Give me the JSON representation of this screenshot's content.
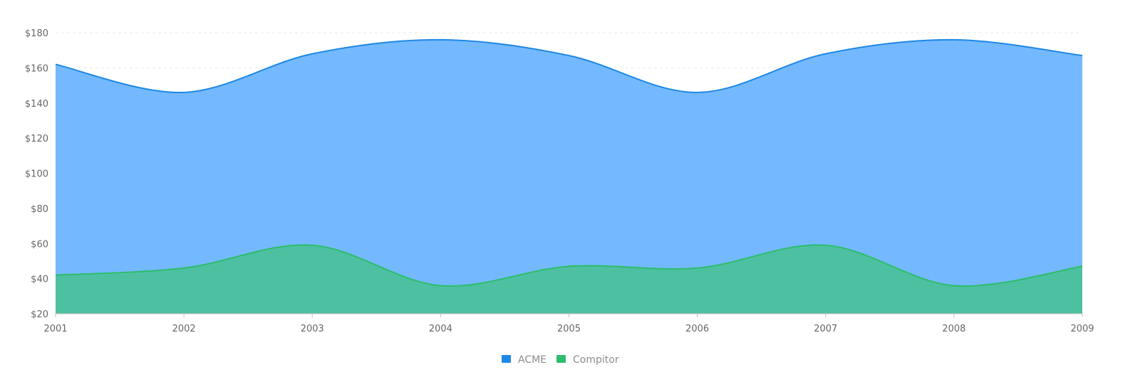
{
  "chart_data": {
    "type": "area",
    "x": [
      "2001",
      "2002",
      "2003",
      "2004",
      "2005",
      "2006",
      "2007",
      "2008",
      "2009"
    ],
    "series": [
      {
        "name": "ACME",
        "values": [
          162,
          146,
          168,
          176,
          167,
          146,
          168,
          176,
          167
        ],
        "color": "#1e88e5",
        "fill": "#74b9ff"
      },
      {
        "name": "Compitor",
        "values": [
          42,
          46,
          59,
          36,
          47,
          46,
          59,
          36,
          47
        ],
        "color": "#2ebd6b",
        "fill": "#4cc09d"
      }
    ],
    "y_ticks": [
      "$20",
      "$40",
      "$60",
      "$80",
      "$100",
      "$120",
      "$140",
      "$160",
      "$180"
    ],
    "y_tick_values": [
      20,
      40,
      60,
      80,
      100,
      120,
      140,
      160,
      180
    ],
    "ylim": [
      20,
      180
    ],
    "grid": true,
    "legend_position": "bottom-center"
  }
}
